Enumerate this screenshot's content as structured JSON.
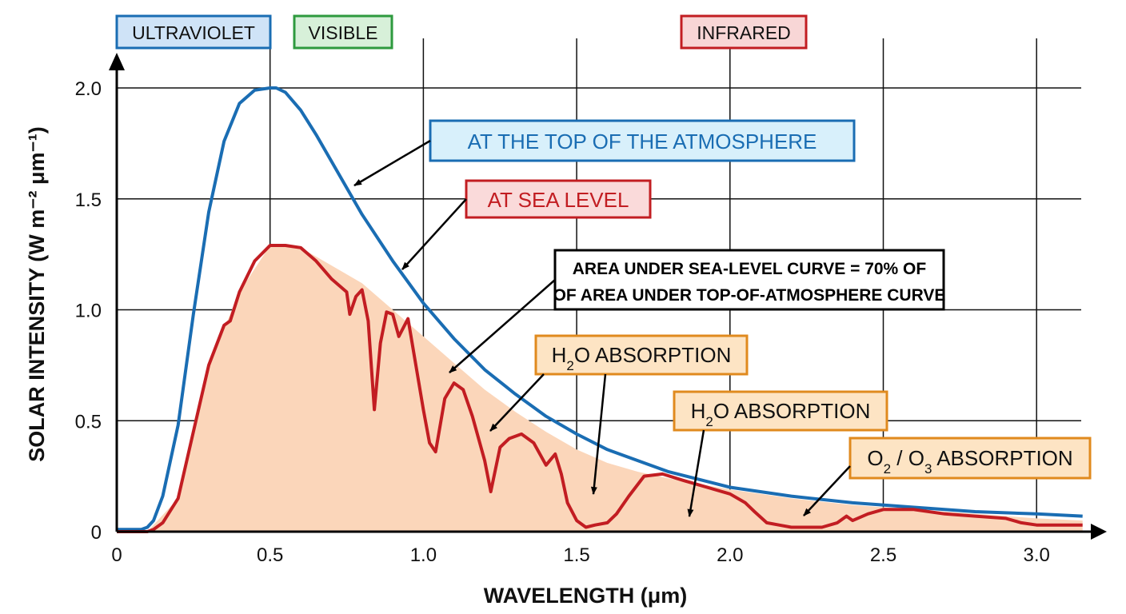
{
  "chart_data": {
    "type": "area",
    "xlabel": "WAVELENGTH (μm)",
    "ylabel": "SOLAR INTENSITY (W m⁻² μm⁻¹)",
    "xlim": [
      0,
      3.15
    ],
    "ylim": [
      0,
      2.0
    ],
    "x_ticks": [
      "0",
      "0.5",
      "1.0",
      "1.5",
      "2.0",
      "2.5",
      "3.0"
    ],
    "y_ticks": [
      "0",
      "0.5",
      "1.0",
      "1.5",
      "2.0"
    ],
    "grid": true,
    "regions": [
      {
        "label": "ULTRAVIOLET",
        "color": "#1a6db3",
        "fill": "#cfe3f7"
      },
      {
        "label": "VISIBLE",
        "color": "#2e9a3e",
        "fill": "#d7f0d9"
      },
      {
        "label": "INFRARED",
        "color": "#c21d22",
        "fill": "#f8d6d6"
      }
    ],
    "series": [
      {
        "name": "AT THE TOP OF THE ATMOSPHERE",
        "color": "#1a6db3",
        "x": [
          0,
          0.08,
          0.1,
          0.12,
          0.15,
          0.2,
          0.25,
          0.3,
          0.35,
          0.4,
          0.45,
          0.5,
          0.52,
          0.55,
          0.6,
          0.65,
          0.7,
          0.75,
          0.8,
          0.9,
          1.0,
          1.1,
          1.2,
          1.3,
          1.4,
          1.5,
          1.6,
          1.7,
          1.8,
          2.0,
          2.2,
          2.4,
          2.6,
          2.8,
          3.0,
          3.15
        ],
        "values": [
          0.01,
          0.01,
          0.02,
          0.05,
          0.16,
          0.48,
          0.98,
          1.44,
          1.76,
          1.93,
          1.99,
          2.0,
          2.0,
          1.98,
          1.9,
          1.79,
          1.67,
          1.55,
          1.43,
          1.22,
          1.03,
          0.87,
          0.73,
          0.62,
          0.52,
          0.44,
          0.37,
          0.32,
          0.27,
          0.2,
          0.16,
          0.13,
          0.11,
          0.09,
          0.08,
          0.07
        ]
      },
      {
        "name": "AT SEA LEVEL",
        "color": "#c21d22",
        "fill": "#fbd6ba",
        "x": [
          0,
          0.1,
          0.12,
          0.15,
          0.2,
          0.25,
          0.3,
          0.35,
          0.37,
          0.4,
          0.45,
          0.5,
          0.55,
          0.6,
          0.65,
          0.7,
          0.75,
          0.76,
          0.78,
          0.8,
          0.82,
          0.84,
          0.86,
          0.88,
          0.9,
          0.92,
          0.95,
          1.0,
          1.02,
          1.04,
          1.07,
          1.1,
          1.13,
          1.16,
          1.2,
          1.22,
          1.25,
          1.28,
          1.32,
          1.36,
          1.4,
          1.43,
          1.45,
          1.47,
          1.5,
          1.53,
          1.56,
          1.6,
          1.63,
          1.67,
          1.72,
          1.78,
          1.85,
          1.9,
          2.0,
          2.05,
          2.08,
          2.12,
          2.16,
          2.2,
          2.25,
          2.3,
          2.35,
          2.38,
          2.4,
          2.45,
          2.5,
          2.6,
          2.7,
          2.8,
          2.9,
          2.95,
          3.0,
          3.1,
          3.15
        ],
        "values": [
          0.0,
          0.0,
          0.01,
          0.04,
          0.15,
          0.45,
          0.75,
          0.93,
          0.95,
          1.08,
          1.22,
          1.29,
          1.29,
          1.28,
          1.22,
          1.14,
          1.08,
          0.98,
          1.06,
          1.09,
          0.95,
          0.55,
          0.85,
          0.99,
          0.98,
          0.88,
          0.96,
          0.55,
          0.4,
          0.36,
          0.6,
          0.67,
          0.64,
          0.52,
          0.32,
          0.18,
          0.38,
          0.42,
          0.44,
          0.4,
          0.3,
          0.35,
          0.26,
          0.13,
          0.05,
          0.02,
          0.03,
          0.04,
          0.08,
          0.16,
          0.25,
          0.26,
          0.23,
          0.21,
          0.17,
          0.13,
          0.09,
          0.04,
          0.03,
          0.02,
          0.02,
          0.02,
          0.04,
          0.07,
          0.05,
          0.08,
          0.1,
          0.1,
          0.08,
          0.07,
          0.06,
          0.04,
          0.03,
          0.03,
          0.03
        ]
      }
    ],
    "annotations": [
      {
        "text": "AT THE TOP OF THE ATMOSPHERE",
        "color": "#1a6db3",
        "fill": "#d8f0fb"
      },
      {
        "text": "AT SEA LEVEL",
        "color": "#c21d22",
        "fill": "#fadada"
      },
      {
        "line1": "AREA UNDER SEA-LEVEL CURVE = 70% OF",
        "line2": "OF AREA UNDER TOP-OF-ATMOSPHERE CURVE",
        "color": "#000000",
        "fill": "#ffffff"
      },
      {
        "text_pre": "H",
        "sub": "2",
        "text_post": "O ABSORPTION",
        "color": "#e08a1e",
        "fill": "#fde4c4"
      },
      {
        "text_pre": "H",
        "sub": "2",
        "text_post": "O ABSORPTION",
        "color": "#e08a1e",
        "fill": "#fde4c4"
      },
      {
        "text_pre": "O",
        "sub": "2",
        "text_mid": " / O",
        "sub2": "3",
        "text_post": " ABSORPTION",
        "color": "#e08a1e",
        "fill": "#fde4c4"
      }
    ]
  }
}
